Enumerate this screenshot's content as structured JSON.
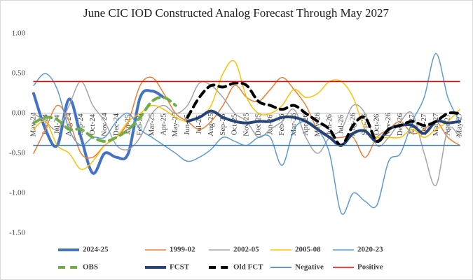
{
  "chart_data": {
    "type": "line",
    "title": "June CIC IOD Constructed Analog Forecast Through May 2027",
    "categories": [
      "May-24",
      "Jun-24",
      "Jul-24",
      "Aug-24",
      "Sep-24",
      "Oct-24",
      "Nov-24",
      "Dec-24",
      "Jan-25",
      "Feb-25",
      "Mar-25",
      "Apr-25",
      "May-25",
      "Jun-25",
      "Jul-25",
      "Aug-25",
      "Sep-25",
      "Oct-25",
      "Nov-25",
      "Dec-25",
      "Jan-26",
      "Feb-26",
      "Mar-26",
      "Apr-26",
      "May-26",
      "Jun-26",
      "Jul-26",
      "Aug-26",
      "Sep-26",
      "Oct-26",
      "Nov-26",
      "Dec-26",
      "Jan-27",
      "Feb-27",
      "Mar-27",
      "Apr-27",
      "May-27"
    ],
    "ylim": [
      -1.5,
      1.0
    ],
    "yticks": [
      {
        "value": 1.0,
        "label": "1.00"
      },
      {
        "value": 0.5,
        "label": "0.50"
      },
      {
        "value": 0,
        "label": "0.00"
      },
      {
        "value": -0.5,
        "label": "-0.50"
      },
      {
        "value": -1.0,
        "label": "-1.00"
      },
      {
        "value": -1.5,
        "label": "-1.50"
      }
    ],
    "grid": false,
    "legend": "bottom",
    "series": [
      {
        "name": "2024-25",
        "color": "#4472c4",
        "width": 4,
        "dash": "solid",
        "values": [
          0.25,
          -0.2,
          -0.4,
          0.18,
          -0.3,
          -0.75,
          -0.5,
          -0.55,
          -0.5,
          0.2,
          0.28,
          0.2,
          null,
          null,
          null,
          null,
          null,
          null,
          null,
          null,
          null,
          null,
          null,
          null,
          null,
          null,
          null,
          null,
          null,
          null,
          null,
          null,
          null,
          null,
          null,
          null,
          null
        ]
      },
      {
        "name": "1999-02",
        "color": "#ed7d31",
        "width": 1.5,
        "dash": "solid",
        "values": [
          -0.5,
          -0.2,
          0.1,
          -0.1,
          -0.5,
          -0.55,
          -0.4,
          -0.3,
          -0.1,
          0.35,
          0.45,
          0.25,
          0.0,
          -0.1,
          -0.2,
          -0.1,
          0.1,
          0.35,
          0.2,
          0.15,
          0.3,
          0.45,
          0.3,
          0.1,
          -0.2,
          -0.3,
          -0.3,
          -0.3,
          -0.55,
          -0.3,
          -0.2,
          -0.1,
          -0.25,
          -0.2,
          -0.1,
          -0.3,
          -0.4
        ]
      },
      {
        "name": "2002-05",
        "color": "#a5a5a5",
        "width": 1.5,
        "dash": "solid",
        "values": [
          0.0,
          -0.1,
          -0.2,
          0.1,
          0.4,
          0.1,
          -0.1,
          -0.4,
          -0.45,
          -0.3,
          0.0,
          0.1,
          0.0,
          0.1,
          0.38,
          0.35,
          0.2,
          0.0,
          -0.1,
          -0.3,
          -0.2,
          -0.1,
          0.05,
          -0.3,
          -0.5,
          -0.3,
          -0.2,
          0.1,
          0.0,
          -0.4,
          -0.3,
          -0.1,
          0.0,
          -0.5,
          -0.9,
          -0.2,
          -0.3
        ]
      },
      {
        "name": "2005-08",
        "color": "#ffc000",
        "width": 1.5,
        "dash": "solid",
        "values": [
          -0.2,
          -0.1,
          -0.4,
          -0.5,
          -0.7,
          -0.6,
          -0.4,
          -0.3,
          -0.1,
          0.0,
          0.1,
          0.05,
          -0.05,
          -0.1,
          -0.05,
          0.1,
          0.5,
          0.65,
          0.2,
          0.0,
          0.0,
          0.1,
          0.3,
          0.2,
          0.25,
          0.4,
          0.4,
          0.2,
          -0.2,
          -0.3,
          -0.3,
          -0.3,
          -0.2,
          -0.3,
          -0.2,
          -0.1,
          0.05
        ]
      },
      {
        "name": "2020-23",
        "color": "#5b9bd5",
        "width": 1.5,
        "dash": "solid",
        "values": [
          0.35,
          0.5,
          0.3,
          -0.2,
          -0.4,
          -0.3,
          -0.3,
          -0.1,
          0.0,
          -0.2,
          -0.3,
          -0.4,
          -0.5,
          -0.6,
          -0.55,
          -0.45,
          -0.3,
          -0.35,
          -0.4,
          -0.3,
          -0.3,
          -0.65,
          -0.2,
          -0.1,
          -0.2,
          -0.5,
          -1.25,
          -1.0,
          -1.1,
          -1.15,
          -0.6,
          -0.5,
          -0.1,
          0.2,
          0.75,
          0.2,
          -0.1
        ]
      },
      {
        "name": "OBS",
        "color": "#70ad47",
        "width": 4,
        "dash": "dash",
        "values": [
          -0.12,
          -0.05,
          -0.08,
          -0.2,
          -0.2,
          -0.3,
          -0.35,
          -0.3,
          -0.2,
          -0.05,
          0.15,
          0.2,
          0.1,
          null,
          null,
          null,
          null,
          null,
          null,
          null,
          null,
          null,
          null,
          null,
          null,
          null,
          null,
          null,
          null,
          null,
          null,
          null,
          null,
          null,
          null,
          null,
          null
        ]
      },
      {
        "name": "FCST",
        "color": "#264478",
        "width": 4,
        "dash": "solid",
        "values": [
          null,
          null,
          null,
          null,
          null,
          null,
          null,
          null,
          null,
          null,
          null,
          null,
          null,
          -0.1,
          -0.05,
          0.03,
          -0.05,
          -0.1,
          -0.12,
          -0.1,
          -0.1,
          -0.05,
          -0.05,
          -0.1,
          -0.2,
          -0.3,
          -0.4,
          -0.25,
          -0.22,
          -0.35,
          -0.2,
          -0.15,
          -0.15,
          -0.25,
          -0.1,
          -0.12,
          -0.1
        ]
      },
      {
        "name": "Old FCT",
        "color": "#000000",
        "width": 4,
        "dash": "dash",
        "values": [
          null,
          null,
          null,
          null,
          null,
          null,
          null,
          null,
          null,
          null,
          null,
          null,
          null,
          -0.05,
          0.2,
          0.35,
          0.33,
          0.38,
          0.35,
          0.15,
          0.1,
          0.05,
          0.1,
          0.0,
          -0.1,
          -0.2,
          -0.4,
          -0.15,
          -0.05,
          -0.35,
          -0.2,
          -0.15,
          -0.1,
          -0.15,
          -0.1,
          0.0,
          0.0
        ]
      },
      {
        "name": "Negative",
        "color": "#2e75b6",
        "width": 1.5,
        "dash": "solid",
        "values": [
          -0.4,
          -0.4,
          -0.4,
          -0.4,
          -0.4,
          -0.4,
          -0.4,
          -0.4,
          -0.4,
          -0.4,
          -0.4,
          -0.4,
          -0.4,
          -0.4,
          -0.4,
          -0.4,
          -0.4,
          -0.4,
          -0.4,
          -0.4,
          -0.4,
          -0.4,
          -0.4,
          -0.4,
          -0.4,
          -0.4,
          -0.4,
          -0.4,
          -0.4,
          -0.4,
          -0.4,
          -0.4,
          -0.4,
          -0.4,
          -0.4,
          -0.4,
          -0.4
        ]
      },
      {
        "name": "Positive",
        "color": "#ff0000",
        "width": 1.5,
        "dash": "solid",
        "values": [
          0.4,
          0.4,
          0.4,
          0.4,
          0.4,
          0.4,
          0.4,
          0.4,
          0.4,
          0.4,
          0.4,
          0.4,
          0.4,
          0.4,
          0.4,
          0.4,
          0.4,
          0.4,
          0.4,
          0.4,
          0.4,
          0.4,
          0.4,
          0.4,
          0.4,
          0.4,
          0.4,
          0.4,
          0.4,
          0.4,
          0.4,
          0.4,
          0.4,
          0.4,
          0.4,
          0.4,
          0.4
        ]
      }
    ]
  }
}
